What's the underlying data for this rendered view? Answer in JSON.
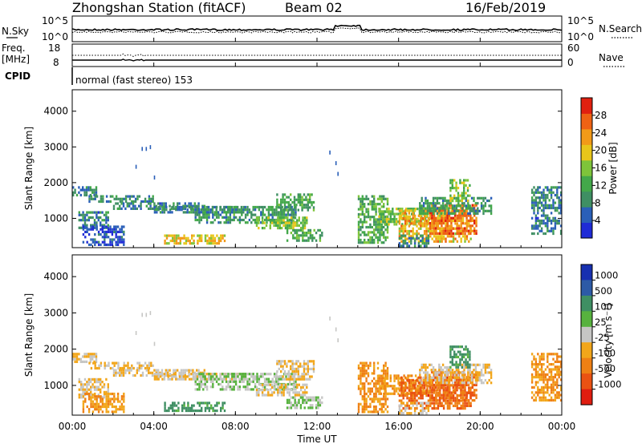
{
  "header": {
    "station": "Zhongshan Station (fitACF)",
    "beam": "Beam 02",
    "date": "16/Feb/2019"
  },
  "noise_panel": {
    "left_label": "N.Sky",
    "right_label": "N.Search",
    "left_ticks": [
      "10^5",
      "10^0"
    ],
    "right_ticks": [
      "10^5",
      "10^0"
    ]
  },
  "freq_panel": {
    "left_label_1": "Freq.",
    "left_label_2": "[MHz]",
    "right_label": "Nave",
    "left_ticks": [
      "18",
      "8"
    ],
    "right_ticks": [
      "60",
      "0"
    ],
    "cpid_label": "CPID",
    "cpid_text": "normal (fast stereo) 153"
  },
  "colors": {
    "power": [
      "#1f2bd6",
      "#2a5fb8",
      "#3f8f63",
      "#43a84a",
      "#7ec43a",
      "#e8c61a",
      "#f29a18",
      "#ee6214",
      "#e02010"
    ],
    "velocity": [
      "#1730b0",
      "#2d5aa6",
      "#3f8f63",
      "#57b23e",
      "#c6c6c4",
      "#f2a61a",
      "#ef8014",
      "#ea5212",
      "#e01d10"
    ],
    "data_line": "#000000"
  },
  "chart_data": [
    {
      "type": "heatmap",
      "quantity": "Power",
      "ylabel": "Slant Range [km]",
      "ylim": [
        180,
        4600
      ],
      "yticks": [
        "1000",
        "2000",
        "3000",
        "4000"
      ],
      "colorbar_label": "Power [dB]",
      "colorbar_ticks": [
        "4",
        "8",
        "12",
        "16",
        "20",
        "24",
        "28"
      ],
      "colorbar_range": [
        0,
        32
      ]
    },
    {
      "type": "heatmap",
      "quantity": "Velocity",
      "ylabel": "Slant Range [km]",
      "ylim": [
        180,
        4600
      ],
      "yticks": [
        "1000",
        "2000",
        "3000",
        "4000"
      ],
      "colorbar_label": "Velocity [m s⁻¹]",
      "colorbar_ticks": [
        "1000",
        "500",
        "100",
        "25",
        "-25",
        "-100",
        "-500",
        "-1000"
      ]
    }
  ],
  "xaxis": {
    "label": "Time UT",
    "ticks": [
      "00:00",
      "04:00",
      "08:00",
      "12:00",
      "16:00",
      "20:00",
      "00:00"
    ],
    "range_hours": [
      0,
      24
    ]
  },
  "scatter_regions": [
    {
      "t0": 0.0,
      "t1": 1.2,
      "r0": 1650,
      "r1": 1900,
      "p": 8,
      "v": -25
    },
    {
      "t0": 0.8,
      "t1": 4.0,
      "r0": 1450,
      "r1": 1650,
      "p": 8,
      "v": -25
    },
    {
      "t0": 2.0,
      "t1": 6.5,
      "r0": 1250,
      "r1": 1450,
      "p": 8,
      "v": -25
    },
    {
      "t0": 4.0,
      "t1": 8.5,
      "r0": 1150,
      "r1": 1350,
      "p": 8,
      "v": -25
    },
    {
      "t0": 0.3,
      "t1": 1.8,
      "r0": 700,
      "r1": 1200,
      "p": 8,
      "v": -25
    },
    {
      "t0": 0.5,
      "t1": 2.5,
      "r0": 280,
      "r1": 800,
      "p": 4,
      "v": -100
    },
    {
      "t0": 4.5,
      "t1": 7.5,
      "r0": 300,
      "r1": 550,
      "p": 20,
      "v": 100
    },
    {
      "t0": 6.0,
      "t1": 11.0,
      "r0": 900,
      "r1": 1350,
      "p": 10,
      "v": 25
    },
    {
      "t0": 9.0,
      "t1": 11.5,
      "r0": 750,
      "r1": 1050,
      "p": 16,
      "v": -25
    },
    {
      "t0": 10.0,
      "t1": 11.8,
      "r0": 1200,
      "r1": 1700,
      "p": 12,
      "v": -25
    },
    {
      "t0": 10.5,
      "t1": 12.2,
      "r0": 400,
      "r1": 700,
      "p": 12,
      "v": 25
    },
    {
      "t0": 14.0,
      "t1": 15.5,
      "r0": 300,
      "r1": 1650,
      "p": 12,
      "v": -100
    },
    {
      "t0": 15.0,
      "t1": 17.5,
      "r0": 800,
      "r1": 1300,
      "p": 16,
      "v": -100
    },
    {
      "t0": 16.0,
      "t1": 19.5,
      "r0": 350,
      "r1": 1250,
      "p": 22,
      "v": -500
    },
    {
      "t0": 17.5,
      "t1": 19.8,
      "r0": 600,
      "r1": 1400,
      "p": 26,
      "v": -500
    },
    {
      "t0": 17.0,
      "t1": 20.5,
      "r0": 1100,
      "r1": 1600,
      "p": 10,
      "v": -25
    },
    {
      "t0": 16.0,
      "t1": 17.5,
      "r0": 250,
      "r1": 550,
      "p": 8,
      "v": -25
    },
    {
      "t0": 18.5,
      "t1": 19.5,
      "r0": 1500,
      "r1": 2100,
      "p": 16,
      "v": 100
    },
    {
      "t0": 22.5,
      "t1": 24.0,
      "r0": 600,
      "r1": 1900,
      "p": 8,
      "v": -100
    }
  ]
}
